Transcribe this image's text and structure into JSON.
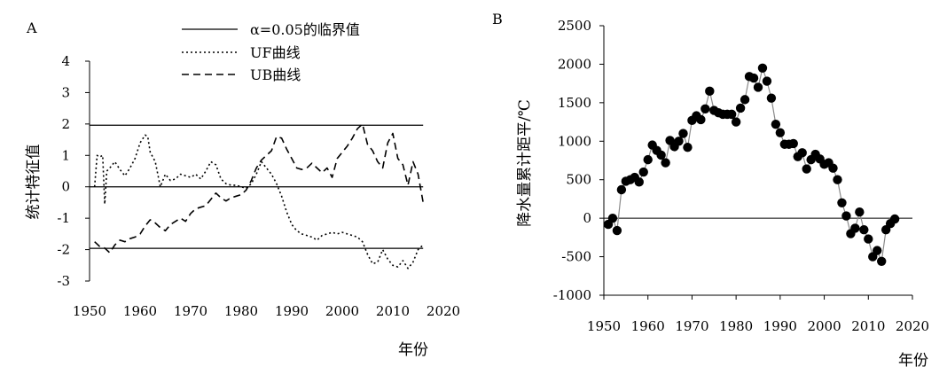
{
  "chart_data": [
    {
      "panel": "A",
      "type": "line",
      "xlabel": "年份",
      "ylabel": "统计特征值",
      "xlim": [
        1950,
        2020
      ],
      "ylim": [
        -3,
        4
      ],
      "xticks": [
        "1950",
        "1960",
        "1970",
        "1980",
        "1990",
        "2000",
        "2010",
        "2020"
      ],
      "yticks": [
        "4",
        "3",
        "2",
        "1",
        "0",
        "-1",
        "-2",
        "-3"
      ],
      "legend_position": "top-center",
      "series": [
        {
          "name": "α=0.05的临界值",
          "style": "solid",
          "segments": [
            [
              [
                1950,
                1.96
              ],
              [
                2016,
                1.96
              ]
            ],
            [
              [
                1950,
                0
              ],
              [
                2016,
                0
              ]
            ],
            [
              [
                1950,
                -1.96
              ],
              [
                2016,
                -1.96
              ]
            ]
          ]
        },
        {
          "name": "UF曲线",
          "style": "dotted",
          "x": [
            1951,
            1951.5,
            1952,
            1952.6,
            1953,
            1953.4,
            1954,
            1955,
            1956,
            1957,
            1958,
            1959,
            1960,
            1961,
            1961.5,
            1962,
            1963,
            1964,
            1965,
            1966,
            1967,
            1968,
            1969,
            1970,
            1971,
            1972,
            1973,
            1974,
            1975,
            1976,
            1977,
            1978,
            1979,
            1980,
            1981,
            1982,
            1983,
            1984,
            1985,
            1986,
            1987,
            1988,
            1989,
            1990,
            1991,
            1992,
            1993,
            1994,
            1995,
            1996,
            1997,
            1998,
            1999,
            2000,
            2001,
            2002,
            2003,
            2004,
            2005,
            2006,
            2007,
            2008,
            2009,
            2010,
            2011,
            2012,
            2013,
            2014,
            2015,
            2016
          ],
          "y": [
            0,
            1.0,
            0.95,
            1.0,
            -0.55,
            0.5,
            0.6,
            0.8,
            0.55,
            0.35,
            0.6,
            0.9,
            1.4,
            1.65,
            1.6,
            1.1,
            0.8,
            0.0,
            0.4,
            0.2,
            0.25,
            0.4,
            0.35,
            0.3,
            0.4,
            0.25,
            0.5,
            0.8,
            0.7,
            0.25,
            0.1,
            0.05,
            0.05,
            0.0,
            -0.05,
            0.1,
            0.4,
            0.8,
            0.6,
            0.4,
            0.1,
            -0.3,
            -0.8,
            -1.2,
            -1.4,
            -1.5,
            -1.55,
            -1.6,
            -1.7,
            -1.55,
            -1.5,
            -1.45,
            -1.5,
            -1.45,
            -1.5,
            -1.55,
            -1.6,
            -1.75,
            -2.15,
            -2.45,
            -2.4,
            -2.0,
            -2.3,
            -2.5,
            -2.55,
            -2.35,
            -2.6,
            -2.4,
            -2.0,
            -1.85
          ]
        },
        {
          "name": "UB曲线",
          "style": "dashed",
          "x": [
            1951,
            1952,
            1953,
            1954,
            1955,
            1956,
            1957,
            1958,
            1959,
            1960,
            1961,
            1962,
            1963,
            1964,
            1965,
            1966,
            1967,
            1968,
            1969,
            1970,
            1971,
            1972,
            1973,
            1974,
            1975,
            1976,
            1977,
            1978,
            1979,
            1980,
            1981,
            1982,
            1983,
            1984,
            1985,
            1986,
            1987,
            1988,
            1989,
            1990,
            1991,
            1992,
            1993,
            1994,
            1995,
            1996,
            1997,
            1998,
            1999,
            2000,
            2001,
            2002,
            2003,
            2004,
            2005,
            2006,
            2007,
            2008,
            2009,
            2010,
            2011,
            2012,
            2013,
            2014,
            2015,
            2016
          ],
          "y": [
            -1.75,
            -1.9,
            -1.95,
            -2.1,
            -1.85,
            -1.7,
            -1.75,
            -1.65,
            -1.6,
            -1.5,
            -1.25,
            -1.05,
            -1.15,
            -1.3,
            -1.4,
            -1.2,
            -1.1,
            -1.0,
            -1.1,
            -0.85,
            -0.7,
            -0.65,
            -0.6,
            -0.4,
            -0.2,
            -0.35,
            -0.45,
            -0.35,
            -0.3,
            -0.25,
            -0.1,
            0.2,
            0.6,
            0.85,
            1.0,
            1.15,
            1.6,
            1.55,
            1.2,
            0.9,
            0.6,
            0.55,
            0.6,
            0.75,
            0.6,
            0.45,
            0.6,
            0.3,
            0.9,
            1.1,
            1.3,
            1.55,
            1.85,
            2.0,
            1.35,
            1.15,
            0.8,
            0.6,
            1.4,
            1.7,
            0.9,
            0.7,
            0.05,
            0.8,
            0.4,
            -0.5
          ]
        }
      ]
    },
    {
      "panel": "B",
      "type": "scatter",
      "xlabel": "年份",
      "ylabel": "降水量累计距平/℃",
      "xlim": [
        1950,
        2020
      ],
      "ylim": [
        -1000,
        2500
      ],
      "xticks": [
        "1950",
        "1960",
        "1970",
        "1980",
        "1990",
        "2000",
        "2010",
        "2020"
      ],
      "yticks": [
        "2500",
        "2000",
        "1500",
        "1000",
        "500",
        "0",
        "-500",
        "-1000"
      ],
      "connector": "smooth grey line",
      "x": [
        1951,
        1952,
        1953,
        1954,
        1955,
        1956,
        1957,
        1958,
        1959,
        1960,
        1961,
        1962,
        1963,
        1964,
        1965,
        1966,
        1967,
        1968,
        1969,
        1970,
        1971,
        1972,
        1973,
        1974,
        1975,
        1976,
        1977,
        1978,
        1979,
        1980,
        1981,
        1982,
        1983,
        1984,
        1985,
        1986,
        1987,
        1988,
        1989,
        1990,
        1991,
        1992,
        1993,
        1994,
        1995,
        1996,
        1997,
        1998,
        1999,
        2000,
        2001,
        2002,
        2003,
        2004,
        2005,
        2006,
        2007,
        2008,
        2009,
        2010,
        2011,
        2012,
        2013,
        2014,
        2015,
        2016
      ],
      "y": [
        -80,
        0,
        -160,
        370,
        480,
        500,
        530,
        470,
        600,
        760,
        950,
        880,
        820,
        720,
        1010,
        930,
        1000,
        1100,
        920,
        1270,
        1330,
        1280,
        1420,
        1650,
        1400,
        1370,
        1350,
        1350,
        1350,
        1250,
        1430,
        1540,
        1840,
        1820,
        1700,
        1950,
        1780,
        1560,
        1220,
        1110,
        960,
        960,
        970,
        800,
        850,
        640,
        760,
        830,
        770,
        700,
        720,
        650,
        500,
        200,
        30,
        -200,
        -130,
        80,
        -150,
        -270,
        -500,
        -420,
        -560,
        -150,
        -70,
        -10
      ]
    }
  ],
  "panelA": {
    "letter": "A",
    "ylabel": "统计特征值",
    "xlabel": "年份",
    "legend": {
      "critical": "α=0.05的临界值",
      "uf": "UF曲线",
      "ub": "UB曲线"
    }
  },
  "panelB": {
    "letter": "B",
    "ylabel": "降水量累计距平/℃",
    "xlabel": "年份"
  }
}
